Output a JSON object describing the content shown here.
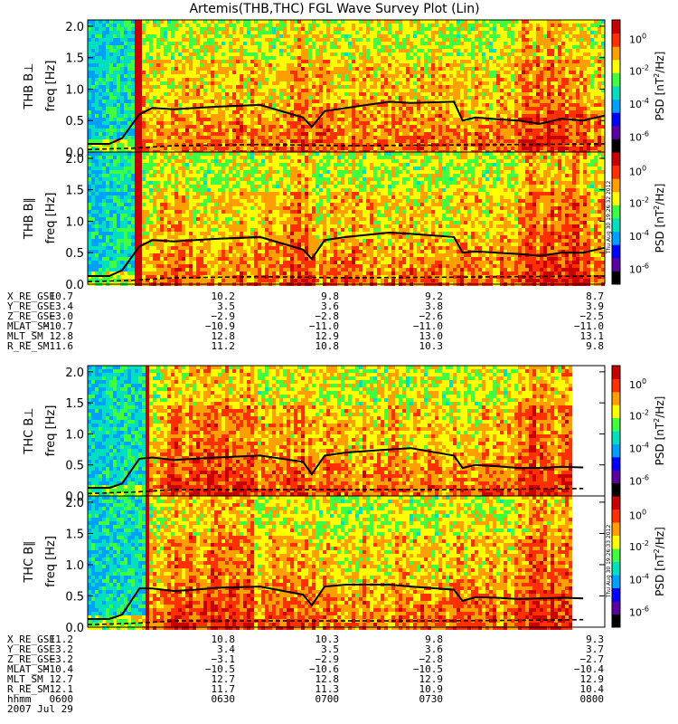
{
  "title": "Artemis(THB,THC) FGL Wave Survey Plot (Lin)",
  "timestamp_vertical": "Thu Aug 30 19:26:32 2012",
  "timestamp_vertical_2": "Thu Aug 30 19:26:33 2012",
  "colors": {
    "spectrogram_scale": [
      "#000000",
      "#5a00a0",
      "#0000ff",
      "#00a0ff",
      "#00e0c0",
      "#40ff40",
      "#ffff00",
      "#ffa000",
      "#ff3000",
      "#c80000"
    ],
    "trace_solid": "#000000",
    "trace_dashed": "#000000"
  },
  "colorbar": {
    "label_prefix": "PSD [nT",
    "label_suffix": "/Hz]",
    "ticks": [
      {
        "base": "10",
        "exp": "0",
        "frac": 0.86
      },
      {
        "base": "10",
        "exp": "-2",
        "frac": 0.62
      },
      {
        "base": "10",
        "exp": "-4",
        "frac": 0.37
      },
      {
        "base": "10",
        "exp": "-6",
        "frac": 0.12
      }
    ]
  },
  "ephem_labels": [
    "X_RE_GSE",
    "Y_RE_GSE",
    "Z_RE_GSE",
    "MLAT_SM",
    "MLT_SM",
    "R_RE_SM"
  ],
  "chart_data": [
    {
      "type": "heatmap",
      "panel": "THB B⊥",
      "probe": "THB",
      "component": "B⊥",
      "ylabel": "freq [Hz]",
      "ylim": [
        0,
        2.1
      ],
      "yticks": [
        "0.0",
        "0.5",
        "1.0",
        "1.5",
        "2.0"
      ],
      "xlim": [
        "0600",
        "0800"
      ],
      "series": [
        {
          "kind": "solid",
          "x": [
            "0600",
            "0605",
            "0608",
            "0612",
            "0615",
            "0620",
            "0625",
            "0630",
            "0640",
            "0650",
            "0652",
            "0655",
            "0700",
            "0710",
            "0715",
            "0725",
            "0727",
            "0730",
            "0735",
            "0740",
            "0745",
            "0750",
            "0755",
            "0800"
          ],
          "y": [
            0.13,
            0.13,
            0.22,
            0.6,
            0.7,
            0.68,
            0.7,
            0.72,
            0.75,
            0.55,
            0.4,
            0.65,
            0.7,
            0.8,
            0.78,
            0.8,
            0.5,
            0.55,
            0.52,
            0.5,
            0.45,
            0.53,
            0.5,
            0.58
          ]
        },
        {
          "kind": "dashed",
          "x": [
            "0600",
            "0610",
            "0620",
            "0640",
            "0700",
            "0720",
            "0740",
            "0800"
          ],
          "y": [
            0.04,
            0.06,
            0.1,
            0.12,
            0.1,
            0.11,
            0.12,
            0.13
          ]
        }
      ]
    },
    {
      "type": "heatmap",
      "panel": "THB B∥",
      "probe": "THB",
      "component": "B∥",
      "ylabel": "freq [Hz]",
      "ylim": [
        0,
        2.1
      ],
      "yticks": [
        "0.0",
        "0.5",
        "1.0",
        "1.5",
        "2.0"
      ],
      "xlim": [
        "0600",
        "0800"
      ],
      "series": [
        {
          "kind": "solid",
          "x": [
            "0600",
            "0605",
            "0608",
            "0612",
            "0615",
            "0620",
            "0625",
            "0630",
            "0640",
            "0650",
            "0652",
            "0655",
            "0700",
            "0710",
            "0715",
            "0725",
            "0727",
            "0730",
            "0735",
            "0740",
            "0745",
            "0750",
            "0755",
            "0800"
          ],
          "y": [
            0.13,
            0.13,
            0.22,
            0.6,
            0.7,
            0.68,
            0.7,
            0.72,
            0.75,
            0.55,
            0.4,
            0.7,
            0.75,
            0.82,
            0.8,
            0.75,
            0.5,
            0.52,
            0.5,
            0.48,
            0.45,
            0.5,
            0.5,
            0.58
          ]
        },
        {
          "kind": "dashed",
          "x": [
            "0600",
            "0610",
            "0620",
            "0640",
            "0700",
            "0720",
            "0740",
            "0800"
          ],
          "y": [
            0.04,
            0.06,
            0.1,
            0.12,
            0.1,
            0.11,
            0.12,
            0.13
          ]
        }
      ]
    },
    {
      "type": "heatmap",
      "panel": "THC B⊥",
      "probe": "THC",
      "component": "B⊥",
      "ylabel": "freq [Hz]",
      "ylim": [
        0,
        2.1
      ],
      "yticks": [
        "0.0",
        "0.5",
        "1.0",
        "1.5",
        "2.0"
      ],
      "xlim": [
        "0600",
        "0800"
      ],
      "series": [
        {
          "kind": "solid",
          "x": [
            "0600",
            "0605",
            "0608",
            "0612",
            "0615",
            "0620",
            "0625",
            "0630",
            "0640",
            "0650",
            "0652",
            "0655",
            "0700",
            "0710",
            "0715",
            "0725",
            "0727",
            "0730",
            "0735",
            "0740",
            "0745",
            "0750",
            "0755"
          ],
          "y": [
            0.13,
            0.13,
            0.2,
            0.6,
            0.62,
            0.58,
            0.6,
            0.62,
            0.65,
            0.55,
            0.35,
            0.65,
            0.7,
            0.75,
            0.77,
            0.65,
            0.45,
            0.5,
            0.48,
            0.45,
            0.45,
            0.47,
            0.46
          ]
        },
        {
          "kind": "dashed",
          "x": [
            "0600",
            "0610",
            "0620",
            "0640",
            "0700",
            "0720",
            "0740",
            "0755"
          ],
          "y": [
            0.04,
            0.06,
            0.1,
            0.1,
            0.1,
            0.1,
            0.11,
            0.12
          ]
        }
      ]
    },
    {
      "type": "heatmap",
      "panel": "THC B∥",
      "probe": "THC",
      "component": "B∥",
      "ylabel": "freq [Hz]",
      "ylim": [
        0,
        2.1
      ],
      "yticks": [
        "0.0",
        "0.5",
        "1.0",
        "1.5",
        "2.0"
      ],
      "xlim": [
        "0600",
        "0800"
      ],
      "series": [
        {
          "kind": "solid",
          "x": [
            "0600",
            "0605",
            "0608",
            "0612",
            "0615",
            "0620",
            "0625",
            "0630",
            "0640",
            "0650",
            "0652",
            "0655",
            "0700",
            "0710",
            "0715",
            "0725",
            "0727",
            "0730",
            "0735",
            "0740",
            "0745",
            "0750",
            "0755"
          ],
          "y": [
            0.13,
            0.13,
            0.2,
            0.62,
            0.62,
            0.58,
            0.6,
            0.63,
            0.65,
            0.52,
            0.35,
            0.65,
            0.68,
            0.68,
            0.65,
            0.6,
            0.42,
            0.48,
            0.47,
            0.45,
            0.46,
            0.47,
            0.46
          ]
        },
        {
          "kind": "dashed",
          "x": [
            "0600",
            "0610",
            "0620",
            "0640",
            "0700",
            "0720",
            "0740",
            "0755"
          ],
          "y": [
            0.04,
            0.06,
            0.1,
            0.1,
            0.1,
            0.1,
            0.11,
            0.12
          ]
        }
      ]
    }
  ],
  "ephemeris_thb": {
    "X_RE_GSE": [
      "10.7",
      "10.2",
      "9.8",
      "9.2",
      "8.7"
    ],
    "Y_RE_GSE": [
      "3.4",
      "3.5",
      "3.6",
      "3.8",
      "3.9"
    ],
    "Z_RE_GSE": [
      "−3.0",
      "−2.9",
      "−2.8",
      "−2.6",
      "−2.5"
    ],
    "MLAT_SM": [
      "−10.7",
      "−10.9",
      "−11.0",
      "−11.0",
      "−11.0"
    ],
    "MLT_SM": [
      "12.8",
      "12.8",
      "12.9",
      "13.0",
      "13.1"
    ],
    "R_RE_SM": [
      "11.6",
      "11.2",
      "10.8",
      "10.3",
      "9.8"
    ]
  },
  "ephemeris_thc": {
    "X_RE_GSE": [
      "11.2",
      "10.8",
      "10.3",
      "9.8",
      "9.3"
    ],
    "Y_RE_GSE": [
      "3.2",
      "3.4",
      "3.5",
      "3.6",
      "3.7"
    ],
    "Z_RE_GSE": [
      "−3.2",
      "−3.1",
      "−2.9",
      "−2.8",
      "−2.7"
    ],
    "MLAT_SM": [
      "−10.4",
      "−10.5",
      "−10.6",
      "−10.5",
      "−10.4"
    ],
    "MLT_SM": [
      "12.7",
      "12.7",
      "12.8",
      "12.9",
      "12.9"
    ],
    "R_RE_SM": [
      "12.1",
      "11.7",
      "11.3",
      "10.9",
      "10.4"
    ]
  },
  "hhmm_label": "hhmm",
  "hhmm": [
    "0600",
    "0630",
    "0700",
    "0730",
    "0800"
  ],
  "date": "2007 Jul 29"
}
